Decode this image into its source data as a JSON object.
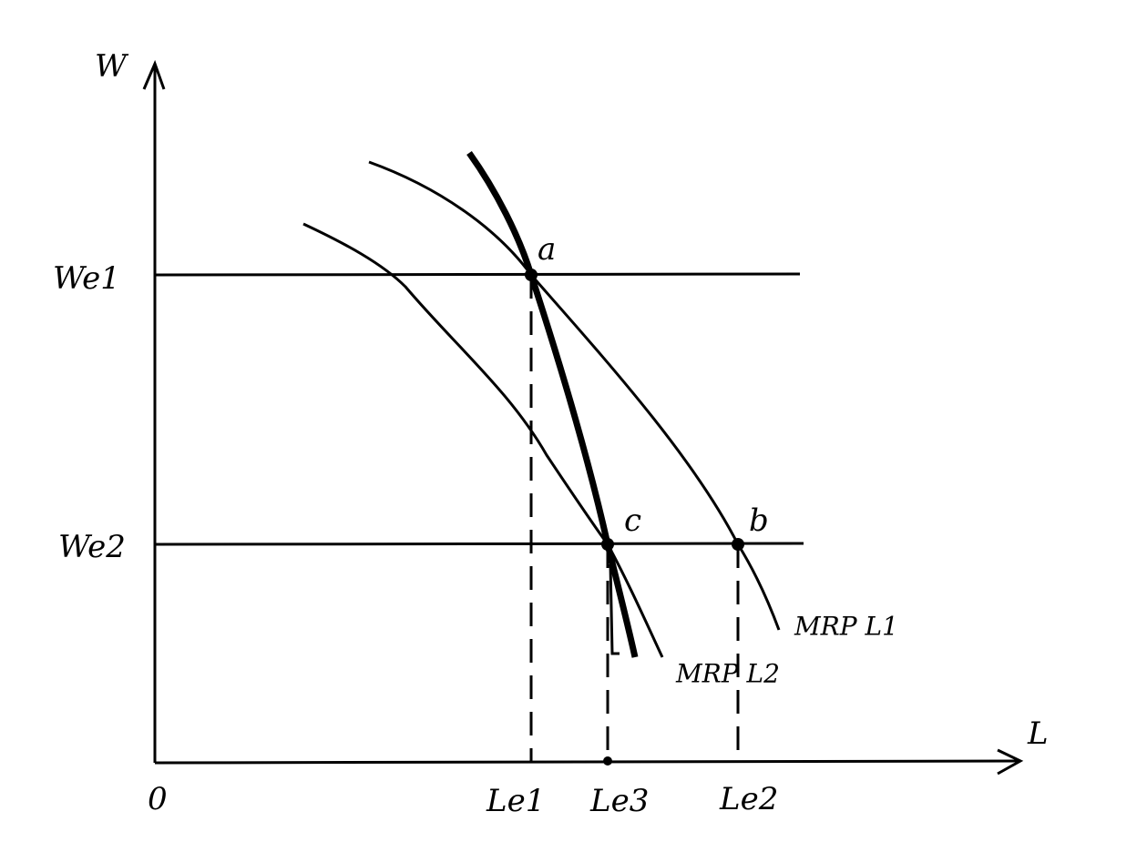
{
  "axes": {
    "y_label": "W",
    "x_label": "L",
    "origin": "0"
  },
  "wage_levels": [
    "We1",
    "We2"
  ],
  "labor_levels": [
    "Le1",
    "Le3",
    "Le2"
  ],
  "points": [
    "a",
    "c",
    "b"
  ],
  "curves": [
    "MRP L1",
    "MRP L2"
  ]
}
